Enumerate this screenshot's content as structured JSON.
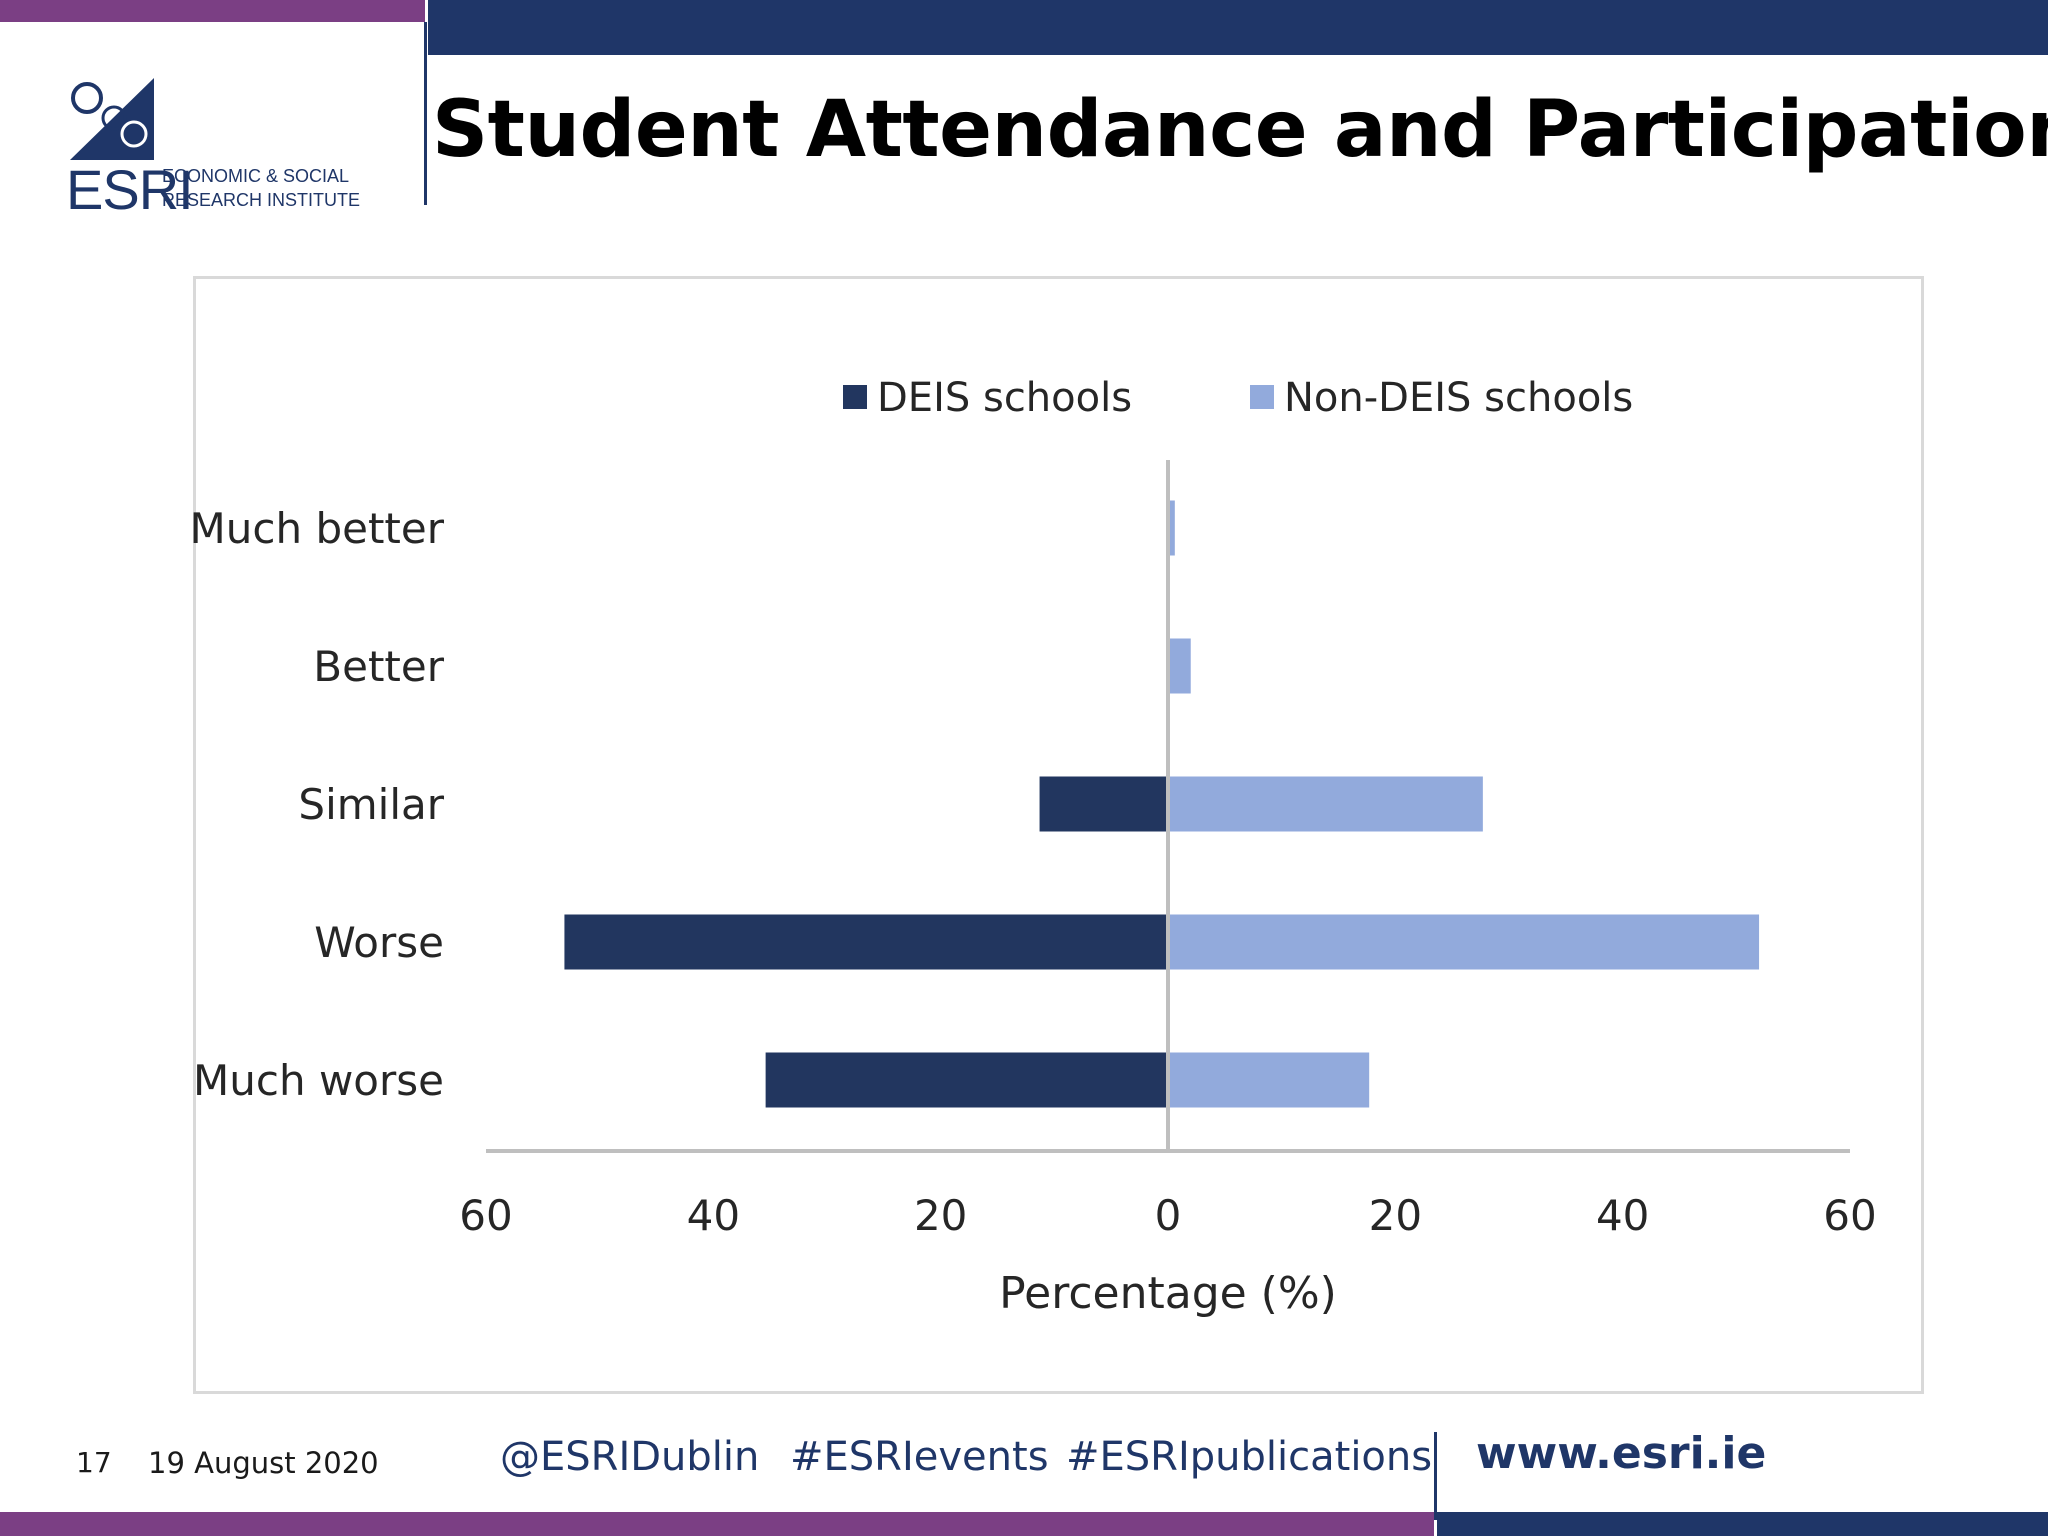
{
  "header": {
    "title": "Student Attendance and Participation",
    "logo": {
      "name": "ESRI",
      "line1": "ECONOMIC & SOCIAL",
      "line2": "RESEARCH INSTITUTE",
      "icon": "esri-logo-icon"
    }
  },
  "colors": {
    "navy": "#1f3668",
    "purple": "#7b3f84",
    "deis": "#22365f",
    "non_deis": "#92aadc",
    "axis": "#bfbfbf"
  },
  "chart_data": {
    "type": "bar",
    "orientation": "horizontal",
    "layout": "diverging",
    "categories": [
      "Much better",
      "Better",
      "Similar",
      "Worse",
      "Much worse"
    ],
    "series": [
      {
        "name": "DEIS schools",
        "values": [
          0,
          0,
          11.3,
          53.1,
          35.4
        ]
      },
      {
        "name": "Non-DEIS schools",
        "values": [
          0.6,
          2,
          27.7,
          52,
          17.7
        ]
      }
    ],
    "xlabel": "Percentage (%)",
    "ylabel": "",
    "xlim": [
      -60,
      60
    ],
    "xticks": [
      -60,
      -40,
      -20,
      0,
      20,
      40,
      60
    ],
    "xtick_labels": [
      "60",
      "40",
      "20",
      "0",
      "20",
      "40",
      "60"
    ],
    "legend": "top-center",
    "grid": false
  },
  "footer": {
    "page_number": "17",
    "date": "19 August 2020",
    "handle": "@ESRIDublin",
    "tag1": "#ESRIevents",
    "tag2": "#ESRIpublications",
    "url": "www.esri.ie"
  }
}
